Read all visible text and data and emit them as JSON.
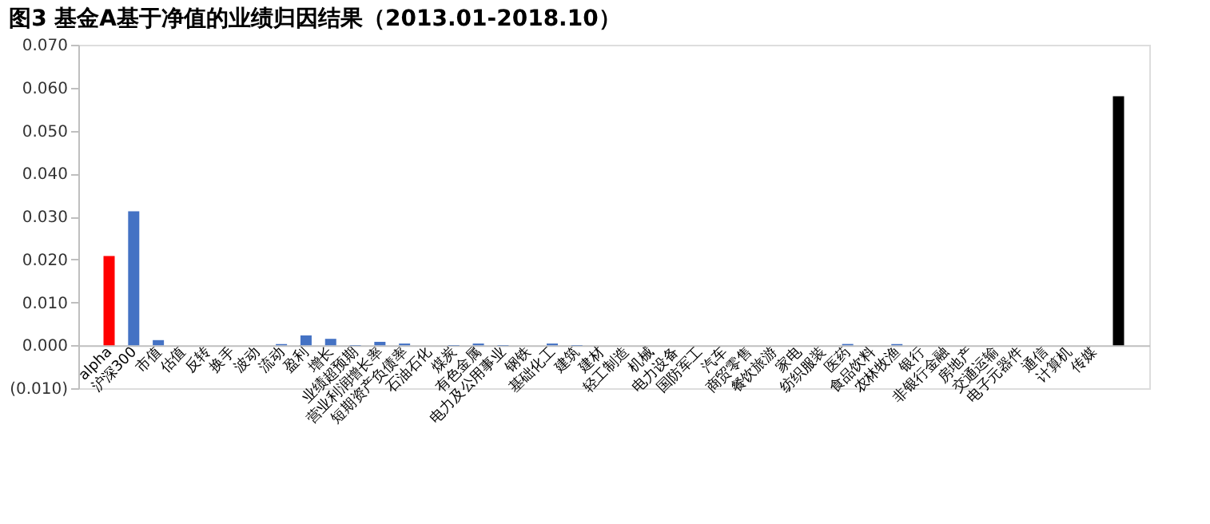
{
  "chart_data": {
    "type": "bar",
    "title": "图3  基金A基于净值的业绩归因结果（2013.01-2018.10）",
    "categories": [
      "alpha",
      "沪深300",
      "市值",
      "估值",
      "反转",
      "换手",
      "波动",
      "流动",
      "盈利",
      "增长",
      "业绩超预期",
      "营业利润增长率",
      "短期资产负债率",
      "石油石化",
      "煤炭",
      "有色金属",
      "电力及公用事业",
      "钢铁",
      "基础化工",
      "建筑",
      "建材",
      "轻工制造",
      "机械",
      "电力设备",
      "国防军工",
      "汽车",
      "商贸零售",
      "餐饮旅游",
      "家电",
      "纺织服装",
      "医药",
      "食品饮料",
      "农林牧渔",
      "银行",
      "非银行金融",
      "房地产",
      "交通运输",
      "电子元器件",
      "通信",
      "计算机",
      "传媒",
      null
    ],
    "values": [
      0.0208,
      0.0312,
      0.0012,
      0,
      0,
      0,
      0,
      0.0003,
      0.0023,
      0.0015,
      -0.0001,
      0.0008,
      0.0004,
      0,
      -0.0001,
      0.0004,
      -0.0001,
      0,
      0.0004,
      -0.0001,
      0,
      0,
      0,
      0,
      0,
      0,
      0,
      0,
      0,
      0,
      0.0003,
      0,
      0.0003,
      0,
      0,
      0,
      0,
      0,
      0,
      0,
      0,
      0.058
    ],
    "colors": [
      "#ff0000",
      "#4472c4",
      "#4472c4",
      "#4472c4",
      "#4472c4",
      "#4472c4",
      "#4472c4",
      "#4472c4",
      "#4472c4",
      "#4472c4",
      "#4472c4",
      "#4472c4",
      "#4472c4",
      "#4472c4",
      "#4472c4",
      "#4472c4",
      "#4472c4",
      "#4472c4",
      "#4472c4",
      "#4472c4",
      "#4472c4",
      "#4472c4",
      "#4472c4",
      "#4472c4",
      "#4472c4",
      "#4472c4",
      "#4472c4",
      "#4472c4",
      "#4472c4",
      "#4472c4",
      "#4472c4",
      "#4472c4",
      "#4472c4",
      "#4472c4",
      "#4472c4",
      "#4472c4",
      "#4472c4",
      "#4472c4",
      "#4472c4",
      "#4472c4",
      "#4472c4",
      "#000000"
    ],
    "ylim": [
      -0.01,
      0.07
    ],
    "yticks": [
      {
        "value": -0.01,
        "label": "(0.010)"
      },
      {
        "value": 0,
        "label": "0.000"
      },
      {
        "value": 0.01,
        "label": "0.010"
      },
      {
        "value": 0.02,
        "label": "0.020"
      },
      {
        "value": 0.03,
        "label": "0.030"
      },
      {
        "value": 0.04,
        "label": "0.040"
      },
      {
        "value": 0.05,
        "label": "0.050"
      },
      {
        "value": 0.06,
        "label": "0.060"
      },
      {
        "value": 0.07,
        "label": "0.070"
      }
    ],
    "grid": false
  }
}
